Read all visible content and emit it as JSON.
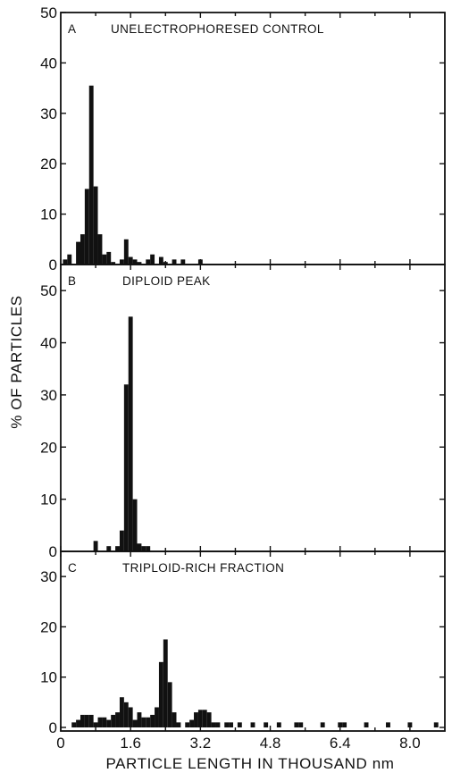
{
  "figure": {
    "ylabel": "% OF PARTICLES",
    "xlabel": "PARTICLE LENGTH IN THOUSAND nm"
  },
  "chart_data": [
    {
      "type": "bar",
      "letter": "A",
      "title": "UNELECTROPHORESED CONTROL",
      "xlim": [
        0,
        8.8
      ],
      "ylim": [
        0,
        50
      ],
      "yticks": [
        0,
        10,
        20,
        30,
        40,
        50
      ],
      "bars": [
        {
          "x": 0.1,
          "y": 1
        },
        {
          "x": 0.2,
          "y": 2
        },
        {
          "x": 0.4,
          "y": 4.5
        },
        {
          "x": 0.5,
          "y": 6
        },
        {
          "x": 0.6,
          "y": 15
        },
        {
          "x": 0.7,
          "y": 35.5
        },
        {
          "x": 0.8,
          "y": 15.5
        },
        {
          "x": 0.9,
          "y": 6
        },
        {
          "x": 1.0,
          "y": 2
        },
        {
          "x": 1.1,
          "y": 2.5
        },
        {
          "x": 1.2,
          "y": 0.5
        },
        {
          "x": 1.4,
          "y": 1
        },
        {
          "x": 1.5,
          "y": 5
        },
        {
          "x": 1.6,
          "y": 1.5
        },
        {
          "x": 1.7,
          "y": 1
        },
        {
          "x": 1.8,
          "y": 0.5
        },
        {
          "x": 2.0,
          "y": 1
        },
        {
          "x": 2.1,
          "y": 2
        },
        {
          "x": 2.3,
          "y": 1.5
        },
        {
          "x": 2.4,
          "y": 0.5
        },
        {
          "x": 2.6,
          "y": 1
        },
        {
          "x": 2.8,
          "y": 1
        },
        {
          "x": 3.2,
          "y": 1
        }
      ]
    },
    {
      "type": "bar",
      "letter": "B",
      "title": "DIPLOID PEAK",
      "xlim": [
        0,
        8.8
      ],
      "ylim": [
        0,
        55
      ],
      "yticks": [
        0,
        10,
        20,
        30,
        40,
        50
      ],
      "bars": [
        {
          "x": 0.8,
          "y": 2
        },
        {
          "x": 1.1,
          "y": 1
        },
        {
          "x": 1.3,
          "y": 1
        },
        {
          "x": 1.4,
          "y": 4
        },
        {
          "x": 1.5,
          "y": 32
        },
        {
          "x": 1.6,
          "y": 45
        },
        {
          "x": 1.7,
          "y": 10
        },
        {
          "x": 1.8,
          "y": 1.5
        },
        {
          "x": 1.9,
          "y": 1
        },
        {
          "x": 2.0,
          "y": 1
        }
      ]
    },
    {
      "type": "bar",
      "letter": "C",
      "title": "TRIPLOID-RICH FRACTION",
      "xlim": [
        0,
        8.8
      ],
      "ylim": [
        0,
        35
      ],
      "yticks": [
        0,
        10,
        20,
        30
      ],
      "xticks": [
        0,
        1.6,
        3.2,
        4.8,
        6.4,
        8.0
      ],
      "bars": [
        {
          "x": 0.3,
          "y": 1
        },
        {
          "x": 0.4,
          "y": 1.5
        },
        {
          "x": 0.5,
          "y": 2.5
        },
        {
          "x": 0.6,
          "y": 2.5
        },
        {
          "x": 0.7,
          "y": 2.5
        },
        {
          "x": 0.8,
          "y": 1
        },
        {
          "x": 0.9,
          "y": 2
        },
        {
          "x": 1.0,
          "y": 2
        },
        {
          "x": 1.1,
          "y": 1.5
        },
        {
          "x": 1.2,
          "y": 2.5
        },
        {
          "x": 1.3,
          "y": 3
        },
        {
          "x": 1.4,
          "y": 6
        },
        {
          "x": 1.5,
          "y": 5
        },
        {
          "x": 1.6,
          "y": 4
        },
        {
          "x": 1.7,
          "y": 1.5
        },
        {
          "x": 1.8,
          "y": 3
        },
        {
          "x": 1.9,
          "y": 2
        },
        {
          "x": 2.0,
          "y": 2
        },
        {
          "x": 2.1,
          "y": 2.5
        },
        {
          "x": 2.2,
          "y": 4
        },
        {
          "x": 2.3,
          "y": 13
        },
        {
          "x": 2.4,
          "y": 17.5
        },
        {
          "x": 2.5,
          "y": 9
        },
        {
          "x": 2.6,
          "y": 3
        },
        {
          "x": 2.7,
          "y": 1
        },
        {
          "x": 2.9,
          "y": 1
        },
        {
          "x": 3.0,
          "y": 1.5
        },
        {
          "x": 3.1,
          "y": 3
        },
        {
          "x": 3.2,
          "y": 3.5
        },
        {
          "x": 3.3,
          "y": 3.5
        },
        {
          "x": 3.4,
          "y": 3
        },
        {
          "x": 3.5,
          "y": 1
        },
        {
          "x": 3.6,
          "y": 1
        },
        {
          "x": 3.8,
          "y": 1
        },
        {
          "x": 3.9,
          "y": 1
        },
        {
          "x": 4.1,
          "y": 1
        },
        {
          "x": 4.4,
          "y": 1
        },
        {
          "x": 4.7,
          "y": 1
        },
        {
          "x": 5.0,
          "y": 1
        },
        {
          "x": 5.4,
          "y": 1
        },
        {
          "x": 5.5,
          "y": 1
        },
        {
          "x": 6.0,
          "y": 1
        },
        {
          "x": 6.4,
          "y": 1
        },
        {
          "x": 6.5,
          "y": 1
        },
        {
          "x": 7.0,
          "y": 1
        },
        {
          "x": 7.5,
          "y": 1
        },
        {
          "x": 8.0,
          "y": 1
        },
        {
          "x": 8.6,
          "y": 1
        }
      ]
    }
  ]
}
